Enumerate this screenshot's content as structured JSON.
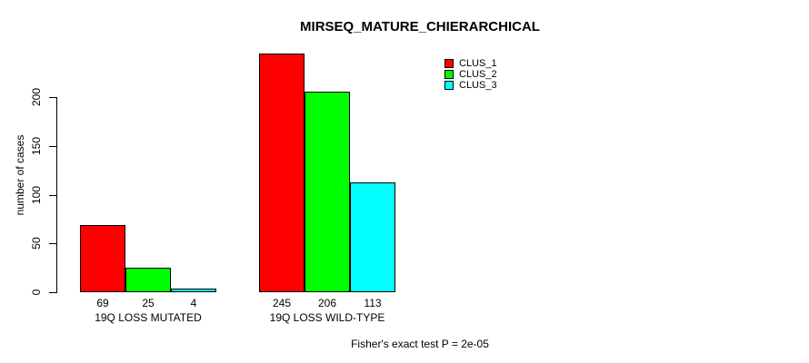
{
  "chart_data": {
    "type": "bar",
    "title": "MIRSEQ_MATURE_CHIERARCHICAL",
    "ylabel": "number of cases",
    "xlabel": "",
    "ylim": [
      0,
      200
    ],
    "yticks": [
      0,
      50,
      100,
      150,
      200
    ],
    "categories": [
      "19Q LOSS MUTATED",
      "19Q LOSS WILD-TYPE"
    ],
    "series": [
      {
        "name": "CLUS_1",
        "color": "#ff0000",
        "values": [
          69,
          245
        ]
      },
      {
        "name": "CLUS_2",
        "color": "#00ff00",
        "values": [
          25,
          206
        ]
      },
      {
        "name": "CLUS_3",
        "color": "#00ffff",
        "values": [
          4,
          113
        ]
      }
    ],
    "bar_value_labels_shown": true,
    "grid": false,
    "legend_position": "top-right",
    "footnote": "Fisher's exact test P = 2e-05"
  }
}
